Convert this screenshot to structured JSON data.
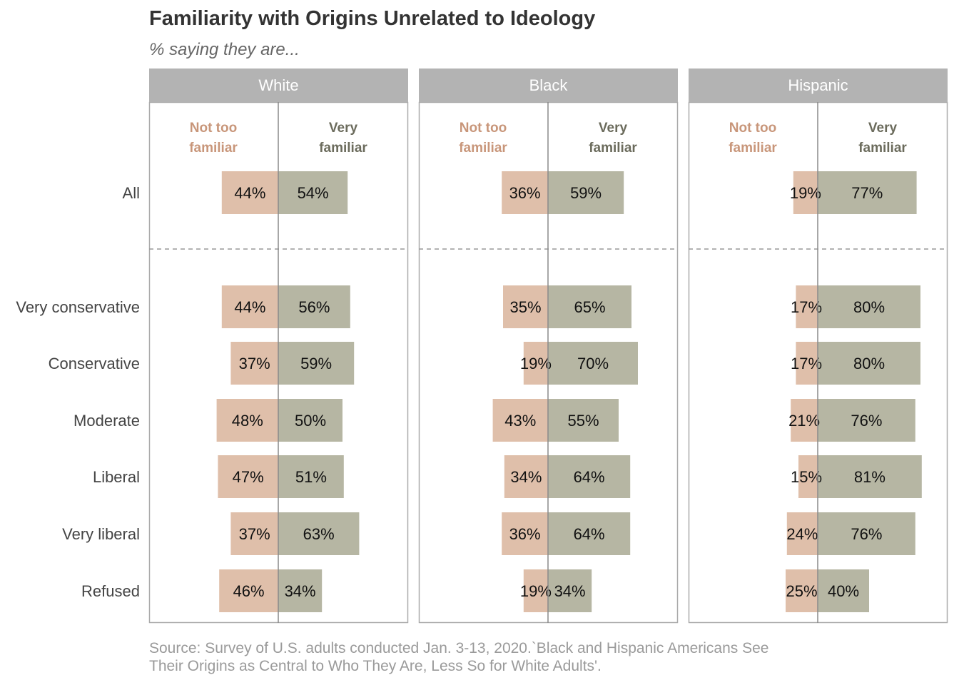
{
  "title": "Familiarity with Origins Unrelated to Ideology",
  "subtitle": "% saying they are...",
  "source": [
    "Source: Survey of U.S. adults conducted Jan. 3-13, 2020.`Black and Hispanic Americans See",
    "Their Origins as Central to Who They Are, Less So for White Adults'."
  ],
  "colors": {
    "not_too_familiar": "#dfbfaa",
    "very_familiar": "#b6b6a3",
    "not_too_label": "#c8967a",
    "very_label": "#6b6b5c",
    "panel_header": "#b3b3b3",
    "panel_header_text": "#ffffff",
    "axis": "#8a8a8a"
  },
  "chart_data": {
    "type": "bar",
    "orientation": "horizontal-diverging",
    "facets": [
      "White",
      "Black",
      "Hispanic"
    ],
    "categories": [
      "All",
      "Very conservative",
      "Conservative",
      "Moderate",
      "Liberal",
      "Very liberal",
      "Refused"
    ],
    "column_labels": {
      "left": [
        "Not too",
        "familiar"
      ],
      "right": [
        "Very",
        "familiar"
      ]
    },
    "unit": "%",
    "series": [
      {
        "name": "Not too familiar",
        "direction": "left",
        "values": {
          "White": [
            44,
            44,
            37,
            48,
            47,
            37,
            46
          ],
          "Black": [
            36,
            35,
            19,
            43,
            34,
            36,
            19
          ],
          "Hispanic": [
            19,
            17,
            17,
            21,
            15,
            24,
            25
          ]
        }
      },
      {
        "name": "Very familiar",
        "direction": "right",
        "values": {
          "White": [
            54,
            56,
            59,
            50,
            51,
            63,
            34
          ],
          "Black": [
            59,
            65,
            70,
            55,
            64,
            64,
            34
          ],
          "Hispanic": [
            77,
            80,
            80,
            76,
            81,
            76,
            40
          ]
        }
      }
    ],
    "separator_after": "All",
    "xlim": [
      -50,
      100
    ],
    "grid": false
  }
}
